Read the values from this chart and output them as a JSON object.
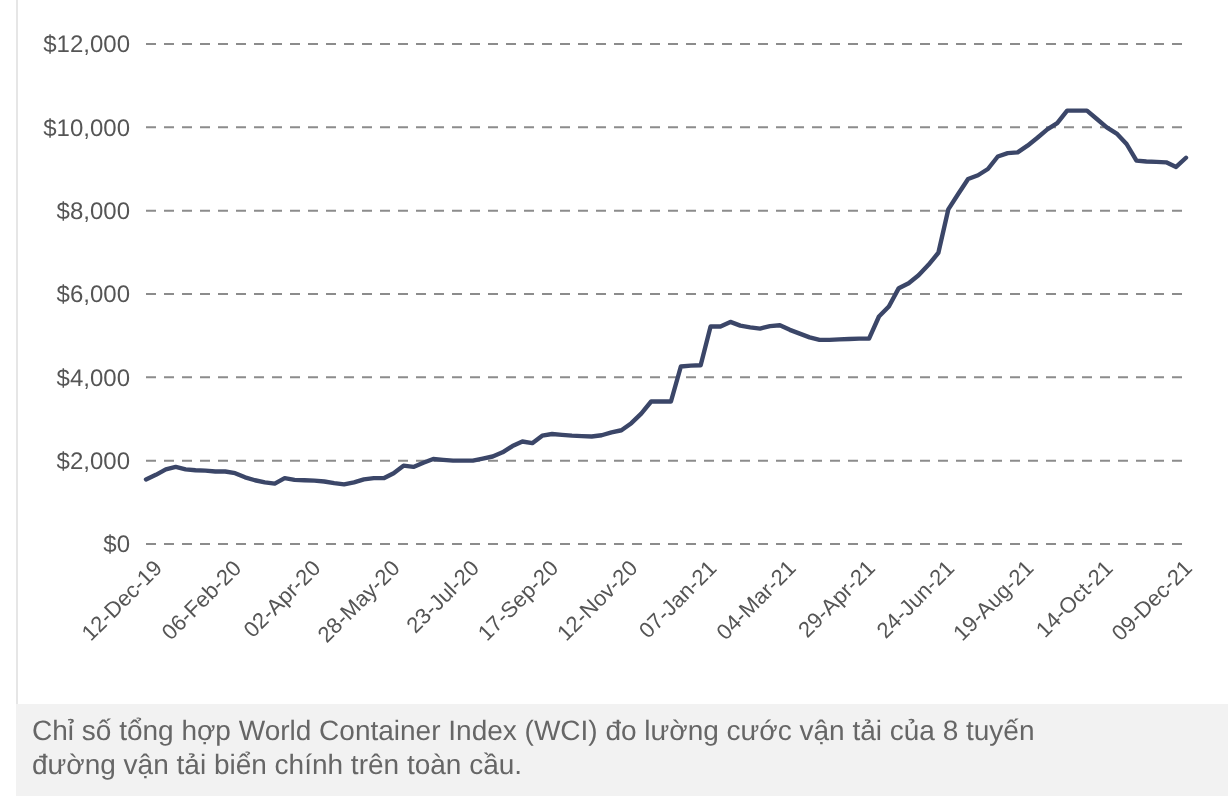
{
  "chart_data": {
    "type": "line",
    "categories": [
      null,
      "12-Dec-19",
      null,
      null,
      null,
      null,
      null,
      null,
      null,
      "06-Feb-20",
      null,
      null,
      null,
      null,
      null,
      null,
      null,
      "02-Apr-20",
      null,
      null,
      null,
      null,
      null,
      null,
      null,
      "28-May-20",
      null,
      null,
      null,
      null,
      null,
      null,
      null,
      "23-Jul-20",
      null,
      null,
      null,
      null,
      null,
      null,
      null,
      "17-Sep-20",
      null,
      null,
      null,
      null,
      null,
      null,
      null,
      "12-Nov-20",
      null,
      null,
      null,
      null,
      null,
      null,
      null,
      "07-Jan-21",
      null,
      null,
      null,
      null,
      null,
      null,
      null,
      "04-Mar-21",
      null,
      null,
      null,
      null,
      null,
      null,
      null,
      "29-Apr-21",
      null,
      null,
      null,
      null,
      null,
      null,
      null,
      "24-Jun-21",
      null,
      null,
      null,
      null,
      null,
      null,
      null,
      "19-Aug-21",
      null,
      null,
      null,
      null,
      null,
      null,
      null,
      "14-Oct-21",
      null,
      null,
      null,
      null,
      null,
      null,
      null,
      "09-Dec-21"
    ],
    "series": [
      {
        "color": "#3b4668",
        "values": [
          1550,
          1660,
          1790,
          1850,
          1790,
          1770,
          1760,
          1740,
          1740,
          1700,
          1600,
          1530,
          1480,
          1450,
          1580,
          1540,
          1530,
          1520,
          1500,
          1460,
          1430,
          1480,
          1550,
          1580,
          1580,
          1700,
          1880,
          1850,
          1950,
          2040,
          2020,
          2000,
          2000,
          2000,
          2050,
          2100,
          2200,
          2350,
          2460,
          2420,
          2600,
          2640,
          2620,
          2600,
          2590,
          2580,
          2610,
          2680,
          2730,
          2900,
          3130,
          3420,
          3420,
          3420,
          4260,
          4280,
          4290,
          5220,
          5220,
          5330,
          5240,
          5200,
          5170,
          5230,
          5250,
          5140,
          5050,
          4960,
          4900,
          4900,
          4910,
          4920,
          4930,
          4930,
          5460,
          5700,
          6140,
          6260,
          6450,
          6700,
          6990,
          8030,
          8400,
          8760,
          8850,
          9000,
          9300,
          9380,
          9400,
          9560,
          9750,
          9950,
          10100,
          10400,
          10400,
          10400,
          10200,
          10000,
          9850,
          9600,
          9200,
          9180,
          9170,
          9160,
          9050,
          9270
        ]
      }
    ],
    "ylim": [
      0,
      12000
    ],
    "yticks": [
      {
        "value": 0,
        "label": "$0"
      },
      {
        "value": 2000,
        "label": "$2,000"
      },
      {
        "value": 4000,
        "label": "$4,000"
      },
      {
        "value": 6000,
        "label": "$6,000"
      },
      {
        "value": 8000,
        "label": "$8,000"
      },
      {
        "value": 10000,
        "label": "$10,000"
      },
      {
        "value": 12000,
        "label": "$12,000"
      }
    ],
    "grid": "y",
    "line_style": "solid",
    "annotations": [
      "Chỉ số tổng hợp World Container Index (WCI) đo lường cước vận tải của 8 tuyến đường vận tải biển chính trên toàn cầu."
    ]
  }
}
